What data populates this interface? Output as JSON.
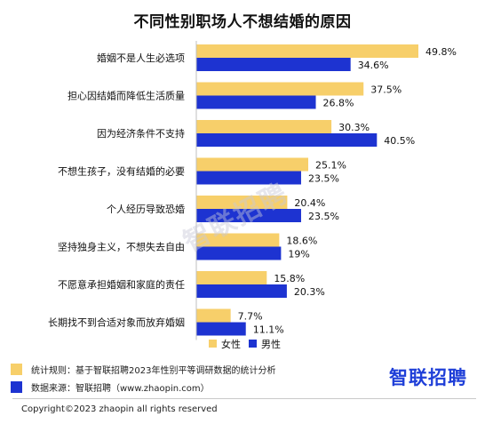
{
  "chart_data": {
    "type": "bar",
    "title": "不同性别职场人不想结婚的原因",
    "categories": [
      "婚姻不是人生必选项",
      "担心因结婚而降低生活质量",
      "因为经济条件不支持",
      "不想生孩子，没有结婚的必要",
      "个人经历导致恐婚",
      "坚持独身主义，不想失去自由",
      "不愿意承担婚姻和家庭的责任",
      "长期找不到合适对象而放弃婚姻"
    ],
    "series": [
      {
        "name": "女性",
        "color": "#f7cf6a",
        "values": [
          49.8,
          37.5,
          30.3,
          25.1,
          20.4,
          18.6,
          15.8,
          7.7
        ],
        "labels": [
          "49.8%",
          "37.5%",
          "30.3%",
          "25.1%",
          "20.4%",
          "18.6%",
          "15.8%",
          "7.7%"
        ]
      },
      {
        "name": "男性",
        "color": "#1d33d1",
        "values": [
          34.6,
          26.8,
          40.5,
          23.5,
          23.5,
          19.0,
          20.3,
          11.1
        ],
        "labels": [
          "34.6%",
          "26.8%",
          "40.5%",
          "23.5%",
          "23.5%",
          "19%",
          "20.3%",
          "11.1%"
        ]
      }
    ],
    "orientation": "horizontal",
    "xlim": [
      0,
      50
    ],
    "grid": false,
    "legend_position": "bottom"
  },
  "footnotes": {
    "stats_rule": "统计规则：基于智联招聘2023年性别平等调研数据的统计分析",
    "data_source": "数据来源：智联招聘（www.zhaopin.com）"
  },
  "brand": "智联招聘",
  "watermark": "智联招聘",
  "copyright": "Copyright©2023 zhaopin all rights reserved",
  "colors": {
    "female": "#f7cf6a",
    "male": "#1d33d1",
    "axis": "#bfbfbf"
  }
}
